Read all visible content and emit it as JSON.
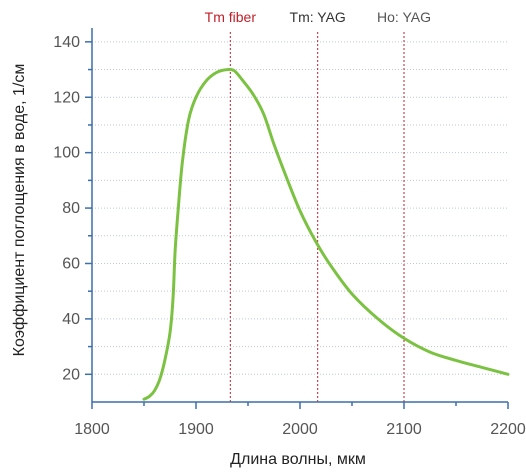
{
  "chart_data": {
    "type": "line",
    "xlabel": "Длина волны, мкм",
    "ylabel": "Коэффициент поглощения в воде, 1/см",
    "xlim": [
      1800,
      2200
    ],
    "ylim": [
      10,
      145
    ],
    "x_ticks": [
      1800,
      1900,
      2000,
      2100,
      2200
    ],
    "y_ticks": [
      20,
      40,
      60,
      80,
      100,
      120,
      140
    ],
    "grid": true,
    "series": [
      {
        "color": "#7cc242",
        "points": [
          [
            1850,
            11
          ],
          [
            1855,
            12
          ],
          [
            1860,
            14
          ],
          [
            1865,
            18
          ],
          [
            1870,
            25
          ],
          [
            1875,
            35
          ],
          [
            1878,
            48
          ],
          [
            1880,
            65
          ],
          [
            1883,
            80
          ],
          [
            1887,
            97
          ],
          [
            1893,
            112
          ],
          [
            1900,
            120
          ],
          [
            1910,
            126
          ],
          [
            1920,
            129
          ],
          [
            1930,
            130
          ],
          [
            1937,
            129.5
          ],
          [
            1945,
            126
          ],
          [
            1955,
            121
          ],
          [
            1965,
            114
          ],
          [
            1975,
            103
          ],
          [
            1985,
            93
          ],
          [
            2000,
            79
          ],
          [
            2015,
            68
          ],
          [
            2030,
            59
          ],
          [
            2050,
            49
          ],
          [
            2075,
            40
          ],
          [
            2100,
            33
          ],
          [
            2125,
            28
          ],
          [
            2150,
            25
          ],
          [
            2175,
            22.5
          ],
          [
            2200,
            20
          ]
        ]
      }
    ],
    "annotations": [
      {
        "label": "Tm fiber",
        "x": 1933,
        "color": "#c0202a"
      },
      {
        "label": "Tm: YAG",
        "x": 2017,
        "color": "#333333"
      },
      {
        "label": "Ho: YAG",
        "x": 2100,
        "color": "#555555"
      }
    ]
  }
}
